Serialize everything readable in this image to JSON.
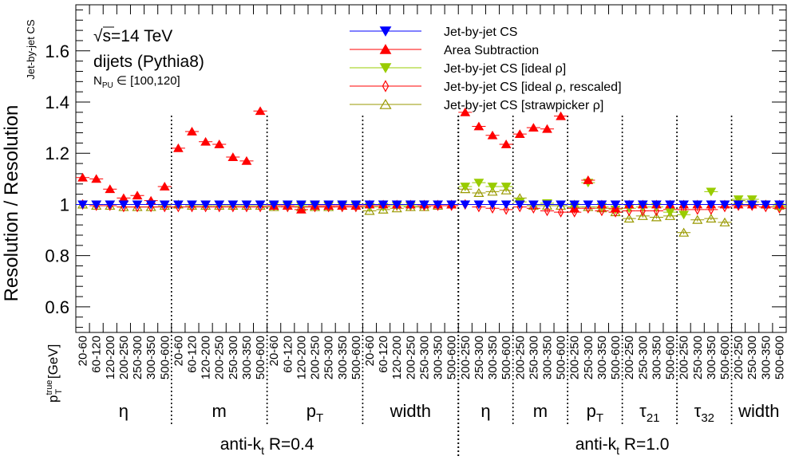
{
  "chart_data": {
    "type": "scatter",
    "ylabel": "Resolution / Resolution",
    "ylabel_sub": "Jet-by-jet CS",
    "xlabel_main": "p",
    "xlabel_sup": "true",
    "xlabel_sub": "T",
    "xlabel_unit": "[GeV]",
    "ylim": [
      0.5,
      1.78
    ],
    "yticks": [
      {
        "v": 0.6,
        "label": "0.6"
      },
      {
        "v": 0.8,
        "label": "0.8"
      },
      {
        "v": 1.0,
        "label": "1"
      },
      {
        "v": 1.2,
        "label": "1.2"
      },
      {
        "v": 1.4,
        "label": "1.4"
      },
      {
        "v": 1.6,
        "label": "1.6"
      }
    ],
    "annotations": {
      "sqrt_s": "s=14 TeV",
      "sqrt": "√",
      "process": "dijets (Pythia8)",
      "npu_main": "N",
      "npu_sub": "PU",
      "npu_range": "∈ [100,120]"
    },
    "bins": [
      "20-60",
      "60-120",
      "120-200",
      "200-250",
      "250-300",
      "300-350",
      "500-600",
      "20-60",
      "60-120",
      "120-200",
      "200-250",
      "250-300",
      "300-350",
      "500-600",
      "20-60",
      "60-120",
      "120-200",
      "200-250",
      "250-300",
      "300-350",
      "500-600",
      "20-60",
      "60-120",
      "120-200",
      "200-250",
      "250-300",
      "300-350",
      "500-600",
      "200-250",
      "250-300",
      "300-350",
      "500-600",
      "200-250",
      "250-300",
      "300-350",
      "500-600",
      "200-250",
      "250-300",
      "300-350",
      "500-600",
      "200-250",
      "250-300",
      "300-350",
      "500-600",
      "200-250",
      "250-300",
      "300-350",
      "500-600",
      "200-250",
      "250-300",
      "300-350",
      "500-600"
    ],
    "groups": [
      {
        "label": "η",
        "sub": "",
        "start": 0,
        "count": 7
      },
      {
        "label": "m",
        "sub": "",
        "start": 7,
        "count": 7
      },
      {
        "label": "p",
        "sub": "T",
        "start": 14,
        "count": 7
      },
      {
        "label": "width",
        "sub": "",
        "start": 21,
        "count": 7
      },
      {
        "label": "η",
        "sub": "",
        "start": 28,
        "count": 4
      },
      {
        "label": "m",
        "sub": "",
        "start": 32,
        "count": 4
      },
      {
        "label": "p",
        "sub": "T",
        "start": 36,
        "count": 4
      },
      {
        "label": "τ",
        "sub": "21",
        "start": 40,
        "count": 4
      },
      {
        "label": "τ",
        "sub": "32",
        "start": 44,
        "count": 4
      },
      {
        "label": "width",
        "sub": "",
        "start": 48,
        "count": 4
      }
    ],
    "radius_groups": [
      {
        "label": "anti-k",
        "sub": "t",
        "suffix": " R=0.4",
        "start": 0,
        "count": 28
      },
      {
        "label": "anti-k",
        "sub": "t",
        "suffix": " R=1.0",
        "start": 28,
        "count": 24
      }
    ],
    "series": [
      {
        "name": "Jet-by-jet CS",
        "marker": "triangle-down-filled",
        "color": "#0000ff",
        "values": [
          1,
          1,
          1,
          1,
          1,
          1,
          1,
          1,
          1,
          1,
          1,
          1,
          1,
          1,
          1,
          1,
          1,
          1,
          1,
          1,
          1,
          1,
          1,
          1,
          1,
          1,
          1,
          1,
          1,
          1,
          1,
          1,
          1,
          1,
          1,
          1,
          1,
          1,
          1,
          1,
          1,
          1,
          1,
          1,
          1,
          1,
          1,
          1,
          1,
          1,
          1,
          1
        ]
      },
      {
        "name": "Area Subtraction",
        "marker": "triangle-up-filled",
        "color": "#ff0000",
        "values": [
          1.105,
          1.1,
          1.06,
          1.025,
          1.035,
          1.015,
          1.07,
          1.22,
          1.285,
          1.245,
          1.235,
          1.185,
          1.17,
          1.365,
          0.995,
          0.995,
          0.98,
          0.995,
          0.995,
          0.995,
          0.995,
          1.0,
          1.0,
          1.0,
          1.0,
          1.0,
          1.0,
          1.0,
          1.36,
          1.305,
          1.27,
          1.235,
          1.275,
          1.3,
          1.295,
          1.345,
          0.985,
          1.095,
          1.0,
          0.985,
          1.0,
          1.0,
          1.0,
          1.0,
          1.0,
          1.0,
          1.0,
          1.0,
          1.0,
          1.0,
          1.0,
          1.0
        ]
      },
      {
        "name": "Jet-by-jet CS [ideal   ρ]",
        "marker": "triangle-down-filled",
        "color": "#99cc00",
        "values": [
          1.0,
          1.0,
          1.0,
          1.0,
          1.0,
          1.0,
          1.0,
          1.0,
          1.0,
          1.0,
          1.0,
          1.0,
          1.0,
          1.0,
          0.995,
          0.995,
          0.995,
          0.995,
          0.995,
          0.995,
          0.995,
          0.99,
          0.99,
          0.995,
          0.995,
          1.0,
          1.0,
          1.0,
          1.07,
          1.085,
          1.07,
          1.07,
          1.01,
          1.0,
          1.005,
          1.0,
          0.99,
          1.085,
          0.99,
          0.98,
          0.985,
          0.99,
          0.99,
          0.97,
          0.96,
          1.0,
          1.05,
          1.0,
          1.02,
          1.02,
          1.0,
          0.99
        ]
      },
      {
        "name": "Jet-by-jet CS [ideal   ρ, rescaled]",
        "marker": "diamond-open",
        "color": "#ff0000",
        "values": [
          1.0,
          0.995,
          0.995,
          0.99,
          0.99,
          0.99,
          0.99,
          0.99,
          0.99,
          0.99,
          0.99,
          0.99,
          0.99,
          0.99,
          0.995,
          0.99,
          0.99,
          0.99,
          0.99,
          0.99,
          0.99,
          0.995,
          0.995,
          0.995,
          0.995,
          0.995,
          0.995,
          0.995,
          1.0,
          0.99,
          0.985,
          0.98,
          0.99,
          0.985,
          0.975,
          0.97,
          0.97,
          0.985,
          0.975,
          0.97,
          0.975,
          0.975,
          0.975,
          0.98,
          0.98,
          0.98,
          0.98,
          0.99,
          0.995,
          0.995,
          0.99,
          0.985
        ]
      },
      {
        "name": "Jet-by-jet CS [strawpicker    ρ]",
        "marker": "triangle-up-open",
        "color": "#999900",
        "values": [
          1.0,
          0.995,
          0.995,
          0.99,
          0.99,
          0.99,
          0.995,
          1.0,
          0.995,
          0.995,
          0.995,
          0.995,
          0.995,
          0.995,
          0.99,
          0.995,
          0.99,
          0.99,
          0.99,
          0.995,
          0.995,
          0.975,
          0.98,
          0.985,
          0.99,
          0.99,
          0.995,
          1.0,
          1.06,
          1.045,
          1.05,
          1.055,
          1.025,
          0.995,
          0.995,
          0.995,
          1.0,
          0.99,
          0.985,
          0.97,
          0.945,
          0.955,
          0.95,
          0.955,
          0.89,
          0.94,
          0.945,
          0.93,
          1.015,
          1.01,
          1.0,
          0.995
        ]
      }
    ]
  }
}
